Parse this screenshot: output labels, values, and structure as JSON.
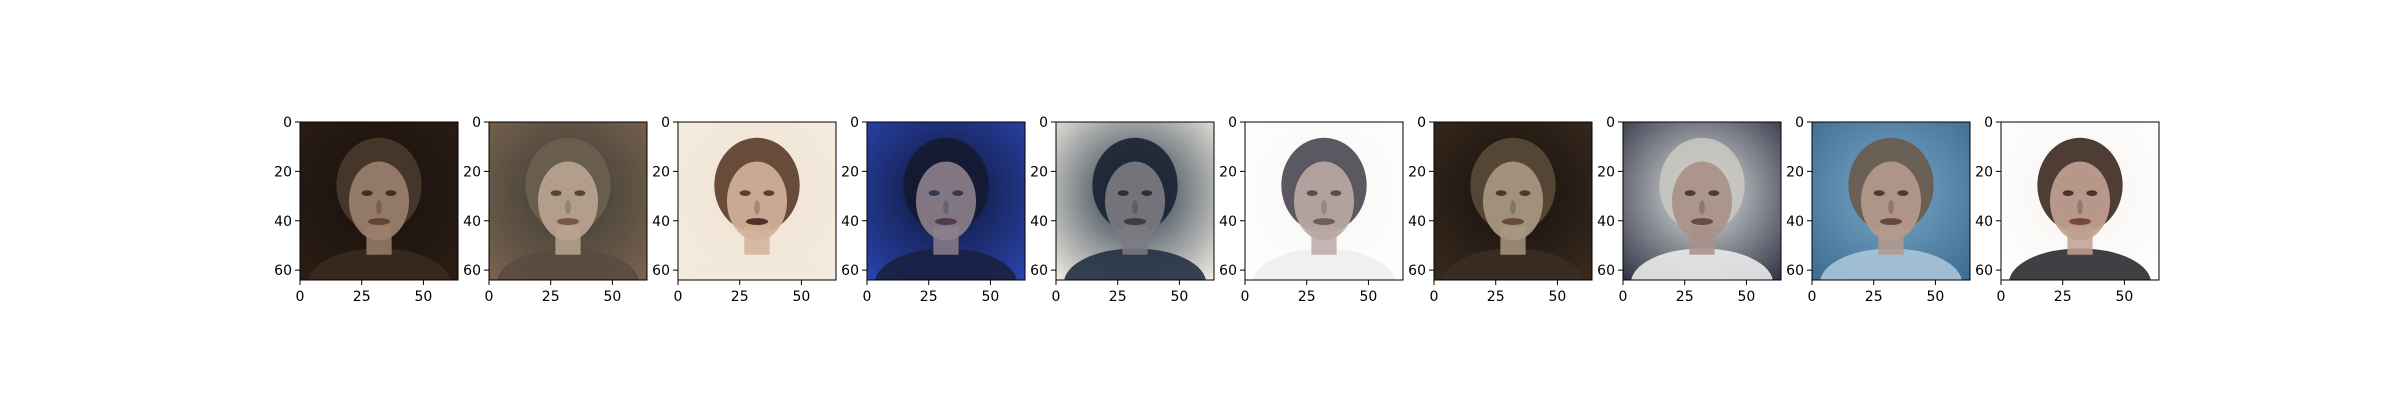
{
  "chart_data": {
    "type": "image-grid",
    "title": "",
    "xlabel": "",
    "ylabel": "",
    "xlim": [
      0,
      64
    ],
    "ylim": [
      64,
      0
    ],
    "xticks": [
      0,
      25,
      50
    ],
    "yticks": [
      0,
      20,
      40,
      60
    ],
    "panels": [
      {
        "bg": "#1a120d",
        "edge": "#2a1d14",
        "hair": "#4a3a2c",
        "skin": "#9a7f6c",
        "shirt": "#3a2a20",
        "eye": "#2a1c14",
        "mouth": "#5a3a30"
      },
      {
        "bg": "#3c3a33",
        "edge": "#7a6450",
        "hair": "#6b6050",
        "skin": "#b8a490",
        "shirt": "#5a4a40",
        "eye": "#3a2e26",
        "mouth": "#6a4a40"
      },
      {
        "bg": "#eee2d2",
        "edge": "#f5ece0",
        "hair": "#5a3a28",
        "skin": "#d4b09a",
        "shirt": "#f2e8dc",
        "eye": "#3a2418",
        "mouth": "#3a1e18"
      },
      {
        "bg": "#0e1430",
        "edge": "#2a45b0",
        "hair": "#141a30",
        "skin": "#8c7e8a",
        "shirt": "#1a2040",
        "eye": "#202840",
        "mouth": "#4a3040"
      },
      {
        "bg": "#203040",
        "edge": "#f4efe6",
        "hair": "#1a2232",
        "skin": "#7c7a80",
        "shirt": "#243044",
        "eye": "#1a1e2a",
        "mouth": "#3a3038"
      },
      {
        "bg": "#f7f6f4",
        "edge": "#ffffff",
        "hair": "#4a4650",
        "skin": "#b8a8a4",
        "shirt": "#f0eeec",
        "eye": "#40383a",
        "mouth": "#6a5050"
      },
      {
        "bg": "#14100c",
        "edge": "#3a2a1e",
        "hair": "#5a4a38",
        "skin": "#a89880",
        "shirt": "#3a2e24",
        "eye": "#2e241a",
        "mouth": "#5a4030"
      },
      {
        "bg": "#e6e6e8",
        "edge": "#2c3040",
        "hair": "#c8c6c0",
        "skin": "#a89088",
        "shirt": "#eaeaea",
        "eye": "#30282a",
        "mouth": "#5a4040"
      },
      {
        "bg": "#7aa8c8",
        "edge": "#3a6a90",
        "hair": "#6a5a4a",
        "skin": "#b49a8c",
        "shirt": "#a8c4d8",
        "eye": "#302420",
        "mouth": "#5a3a34"
      },
      {
        "bg": "#f8f4f0",
        "edge": "#ffffff",
        "hair": "#3a2820",
        "skin": "#c0a090",
        "shirt": "#2a2a30",
        "eye": "#2a1c18",
        "mouth": "#6a3a34"
      }
    ]
  }
}
